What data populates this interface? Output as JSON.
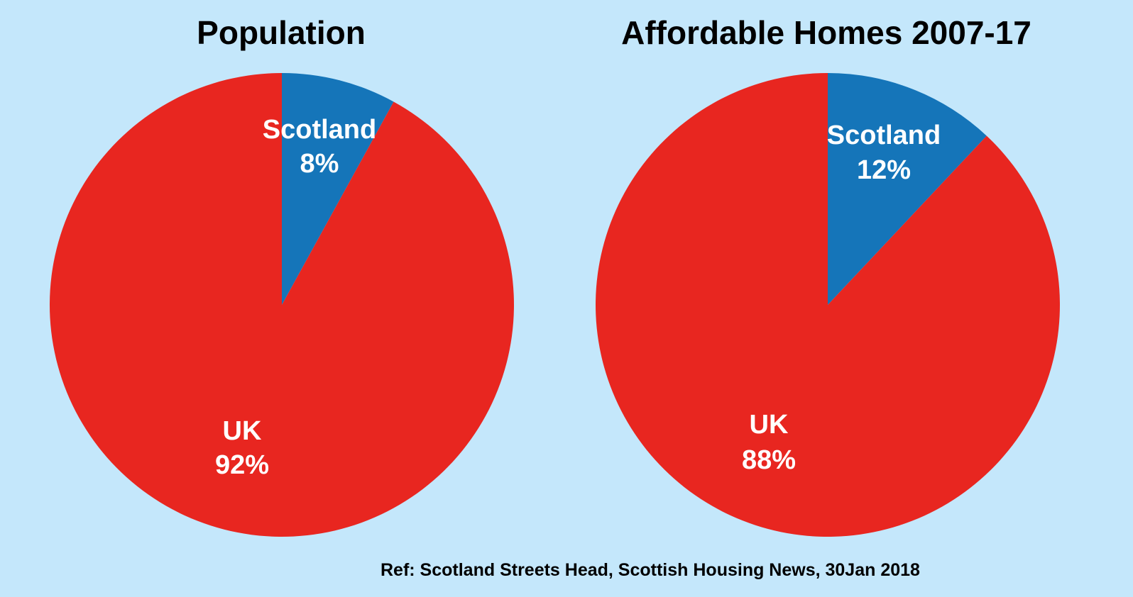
{
  "chart_data": [
    {
      "type": "pie",
      "title": "Population",
      "start_angle_deg": 0,
      "direction": "clockwise",
      "slices": [
        {
          "label": "Scotland",
          "value": 8,
          "value_text": "8%",
          "color": "#1575b9"
        },
        {
          "label": "UK",
          "value": 92,
          "value_text": "92%",
          "color": "#e82620"
        }
      ]
    },
    {
      "type": "pie",
      "title": "Affordable Homes 2007-17",
      "start_angle_deg": 0,
      "direction": "clockwise",
      "slices": [
        {
          "label": "Scotland",
          "value": 12,
          "value_text": "12%",
          "color": "#1575b9"
        },
        {
          "label": "UK",
          "value": 88,
          "value_text": "88%",
          "color": "#e82620"
        }
      ]
    }
  ],
  "source": "Ref: Scotland Streets Head, Scottish Housing News, 30Jan 2018",
  "colors": {
    "background": "#c4e7fb",
    "scotland": "#1575b9",
    "uk": "#e82620",
    "label_text": "#ffffff"
  }
}
